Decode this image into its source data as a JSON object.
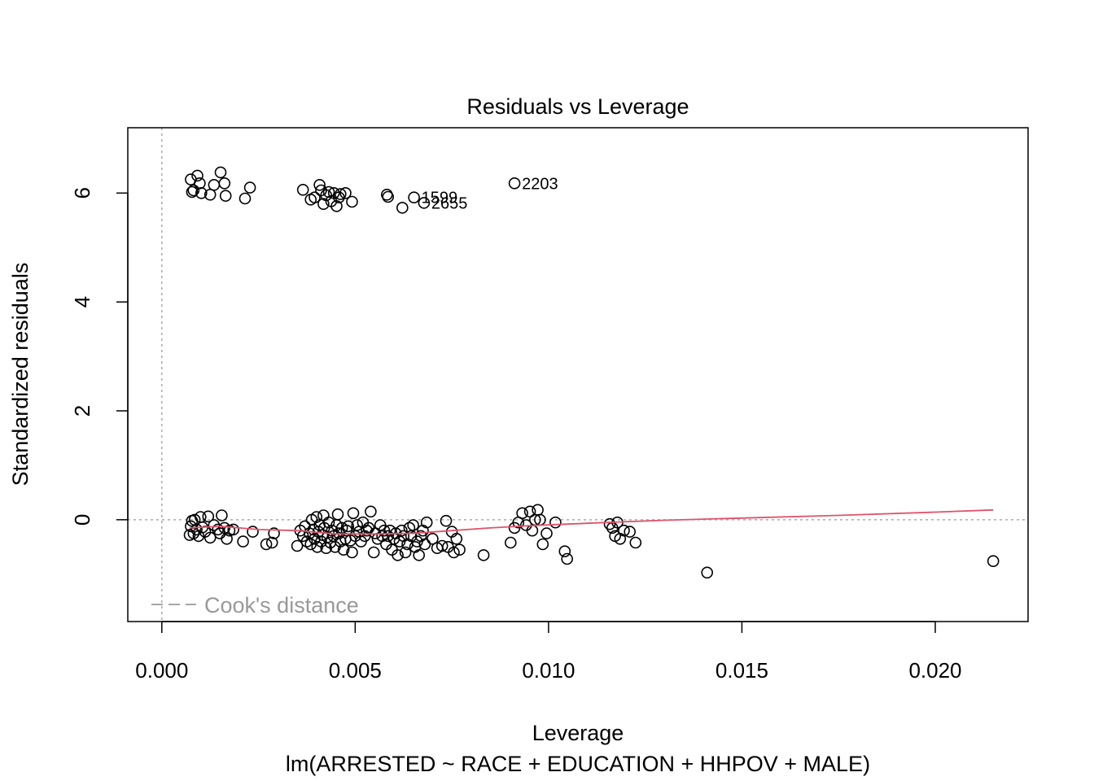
{
  "chart_data": {
    "type": "scatter",
    "title": "Residuals vs Leverage",
    "xlabel": "Leverage",
    "ylabel": "Standardized residuals",
    "caption": "lm(ARRESTED ~ RACE + EDUCATION + HHPOV + MALE)",
    "xlim": [
      -0.00088,
      0.0224
    ],
    "ylim": [
      -1.87,
      7.2
    ],
    "x_ticks": [
      0.0,
      0.005,
      0.01,
      0.015,
      0.02
    ],
    "x_tick_labels": [
      "0.000",
      "0.005",
      "0.010",
      "0.015",
      "0.020"
    ],
    "y_ticks": [
      0,
      2,
      4,
      6
    ],
    "y_tick_labels": [
      "0",
      "2",
      "4",
      "6"
    ],
    "reference_lines": {
      "x": 0,
      "y": 0,
      "color": "#aaaaaa",
      "style": "dotted"
    },
    "legend": {
      "label": "Cook's distance",
      "position": "bottom-left",
      "color": "#999999",
      "style": "dashed"
    },
    "point_color": "#000000",
    "smooth_color": "#DF536B",
    "labeled_points": [
      {
        "label": "2203",
        "x": 0.00912,
        "y": 6.18
      },
      {
        "label": "1599",
        "x": 0.00652,
        "y": 5.92
      },
      {
        "label": "2655",
        "x": 0.00678,
        "y": 5.82
      }
    ],
    "points": [
      [
        0.00075,
        6.25
      ],
      [
        0.00092,
        6.32
      ],
      [
        0.00082,
        6.05
      ],
      [
        0.00078,
        6.02
      ],
      [
        0.00098,
        6.18
      ],
      [
        0.00102,
        6.0
      ],
      [
        0.00125,
        5.97
      ],
      [
        0.00135,
        6.15
      ],
      [
        0.00152,
        6.38
      ],
      [
        0.00162,
        6.18
      ],
      [
        0.00165,
        5.95
      ],
      [
        0.00215,
        5.9
      ],
      [
        0.00228,
        6.1
      ],
      [
        0.00365,
        6.06
      ],
      [
        0.00385,
        5.88
      ],
      [
        0.00395,
        5.92
      ],
      [
        0.00408,
        6.15
      ],
      [
        0.00412,
        6.05
      ],
      [
        0.00418,
        5.8
      ],
      [
        0.00425,
        5.96
      ],
      [
        0.00432,
        6.02
      ],
      [
        0.00438,
        5.85
      ],
      [
        0.00445,
        6.0
      ],
      [
        0.00452,
        5.76
      ],
      [
        0.00458,
        5.92
      ],
      [
        0.00462,
        5.98
      ],
      [
        0.00475,
        6.0
      ],
      [
        0.00492,
        5.84
      ],
      [
        0.00582,
        5.97
      ],
      [
        0.00585,
        5.93
      ],
      [
        0.00622,
        5.73
      ],
      [
        0.00652,
        5.92
      ],
      [
        0.00678,
        5.82
      ],
      [
        0.00912,
        6.18
      ],
      [
        0.00072,
        -0.28
      ],
      [
        0.00075,
        -0.12
      ],
      [
        0.00078,
        -0.02
      ],
      [
        0.00082,
        -0.25
      ],
      [
        0.00085,
        0.0
      ],
      [
        0.0009,
        -0.18
      ],
      [
        0.00095,
        -0.3
      ],
      [
        0.001,
        0.05
      ],
      [
        0.00105,
        -0.14
      ],
      [
        0.00112,
        -0.22
      ],
      [
        0.0012,
        0.06
      ],
      [
        0.00125,
        -0.33
      ],
      [
        0.00135,
        -0.1
      ],
      [
        0.00145,
        -0.18
      ],
      [
        0.0015,
        -0.25
      ],
      [
        0.00155,
        0.08
      ],
      [
        0.00162,
        -0.15
      ],
      [
        0.00168,
        -0.35
      ],
      [
        0.00175,
        -0.2
      ],
      [
        0.00185,
        -0.18
      ],
      [
        0.0021,
        -0.4
      ],
      [
        0.00235,
        -0.22
      ],
      [
        0.0027,
        -0.45
      ],
      [
        0.00285,
        -0.42
      ],
      [
        0.0029,
        -0.25
      ],
      [
        0.0035,
        -0.48
      ],
      [
        0.00358,
        -0.2
      ],
      [
        0.00365,
        -0.3
      ],
      [
        0.0037,
        -0.12
      ],
      [
        0.00375,
        -0.4
      ],
      [
        0.00382,
        -0.25
      ],
      [
        0.00385,
        -0.45
      ],
      [
        0.00388,
        0.0
      ],
      [
        0.00392,
        -0.18
      ],
      [
        0.00395,
        -0.35
      ],
      [
        0.004,
        0.05
      ],
      [
        0.00402,
        -0.5
      ],
      [
        0.00405,
        -0.22
      ],
      [
        0.00408,
        -0.1
      ],
      [
        0.00412,
        -0.4
      ],
      [
        0.00415,
        -0.28
      ],
      [
        0.00418,
        0.08
      ],
      [
        0.0042,
        -0.15
      ],
      [
        0.00425,
        -0.52
      ],
      [
        0.00428,
        -0.32
      ],
      [
        0.00432,
        -0.05
      ],
      [
        0.00436,
        -0.42
      ],
      [
        0.0044,
        -0.2
      ],
      [
        0.00444,
        -0.3
      ],
      [
        0.00448,
        -0.5
      ],
      [
        0.00452,
        -0.1
      ],
      [
        0.00455,
        0.1
      ],
      [
        0.00458,
        -0.25
      ],
      [
        0.00462,
        -0.4
      ],
      [
        0.00466,
        -0.15
      ],
      [
        0.0047,
        -0.55
      ],
      [
        0.00475,
        -0.35
      ],
      [
        0.00478,
        -0.2
      ],
      [
        0.00482,
        -0.12
      ],
      [
        0.00488,
        -0.38
      ],
      [
        0.00492,
        -0.6
      ],
      [
        0.00495,
        0.12
      ],
      [
        0.005,
        -0.3
      ],
      [
        0.00505,
        -0.1
      ],
      [
        0.0051,
        -0.22
      ],
      [
        0.00515,
        -0.4
      ],
      [
        0.0052,
        -0.05
      ],
      [
        0.00525,
        -0.3
      ],
      [
        0.0053,
        -0.2
      ],
      [
        0.00535,
        -0.15
      ],
      [
        0.0054,
        0.15
      ],
      [
        0.00548,
        -0.6
      ],
      [
        0.00552,
        -0.25
      ],
      [
        0.00558,
        -0.35
      ],
      [
        0.00565,
        -0.1
      ],
      [
        0.0057,
        -0.3
      ],
      [
        0.00575,
        -0.2
      ],
      [
        0.0058,
        -0.45
      ],
      [
        0.00585,
        -0.3
      ],
      [
        0.0059,
        -0.2
      ],
      [
        0.00595,
        -0.55
      ],
      [
        0.006,
        -0.35
      ],
      [
        0.00605,
        -0.25
      ],
      [
        0.0061,
        -0.65
      ],
      [
        0.00615,
        -0.4
      ],
      [
        0.0062,
        -0.2
      ],
      [
        0.00625,
        -0.3
      ],
      [
        0.0063,
        -0.6
      ],
      [
        0.00635,
        -0.45
      ],
      [
        0.0064,
        -0.15
      ],
      [
        0.00645,
        -0.3
      ],
      [
        0.0065,
        -0.1
      ],
      [
        0.00655,
        -0.5
      ],
      [
        0.0066,
        -0.4
      ],
      [
        0.00665,
        -0.65
      ],
      [
        0.0067,
        -0.3
      ],
      [
        0.00675,
        -0.2
      ],
      [
        0.0068,
        -0.45
      ],
      [
        0.00685,
        -0.05
      ],
      [
        0.007,
        -0.35
      ],
      [
        0.00712,
        -0.52
      ],
      [
        0.00725,
        -0.48
      ],
      [
        0.00735,
        -0.02
      ],
      [
        0.0074,
        -0.5
      ],
      [
        0.0075,
        -0.22
      ],
      [
        0.00755,
        -0.6
      ],
      [
        0.00762,
        -0.35
      ],
      [
        0.0077,
        -0.55
      ],
      [
        0.00832,
        -0.65
      ],
      [
        0.00902,
        -0.42
      ],
      [
        0.00912,
        -0.15
      ],
      [
        0.00922,
        -0.05
      ],
      [
        0.00932,
        0.12
      ],
      [
        0.00942,
        -0.1
      ],
      [
        0.00952,
        0.15
      ],
      [
        0.00958,
        -0.2
      ],
      [
        0.00965,
        0.0
      ],
      [
        0.00972,
        0.18
      ],
      [
        0.00978,
        0.0
      ],
      [
        0.00985,
        -0.45
      ],
      [
        0.00995,
        -0.25
      ],
      [
        0.01018,
        -0.05
      ],
      [
        0.01042,
        -0.58
      ],
      [
        0.01048,
        -0.72
      ],
      [
        0.01158,
        -0.08
      ],
      [
        0.01165,
        -0.15
      ],
      [
        0.01172,
        -0.3
      ],
      [
        0.01178,
        -0.05
      ],
      [
        0.01185,
        -0.35
      ],
      [
        0.01195,
        -0.2
      ],
      [
        0.0121,
        -0.22
      ],
      [
        0.01225,
        -0.42
      ],
      [
        0.0141,
        -0.97
      ],
      [
        0.0215,
        -0.76
      ]
    ],
    "smooth_line": [
      [
        0.00072,
        -0.15
      ],
      [
        0.0015,
        -0.12
      ],
      [
        0.0025,
        -0.18
      ],
      [
        0.0035,
        -0.2
      ],
      [
        0.0045,
        -0.26
      ],
      [
        0.0055,
        -0.26
      ],
      [
        0.0065,
        -0.25
      ],
      [
        0.0075,
        -0.2
      ],
      [
        0.0085,
        -0.15
      ],
      [
        0.0095,
        -0.11
      ],
      [
        0.0105,
        -0.08
      ],
      [
        0.0115,
        -0.05
      ],
      [
        0.013,
        -0.01
      ],
      [
        0.015,
        0.03
      ],
      [
        0.0175,
        0.08
      ],
      [
        0.02,
        0.14
      ],
      [
        0.0215,
        0.18
      ]
    ]
  }
}
